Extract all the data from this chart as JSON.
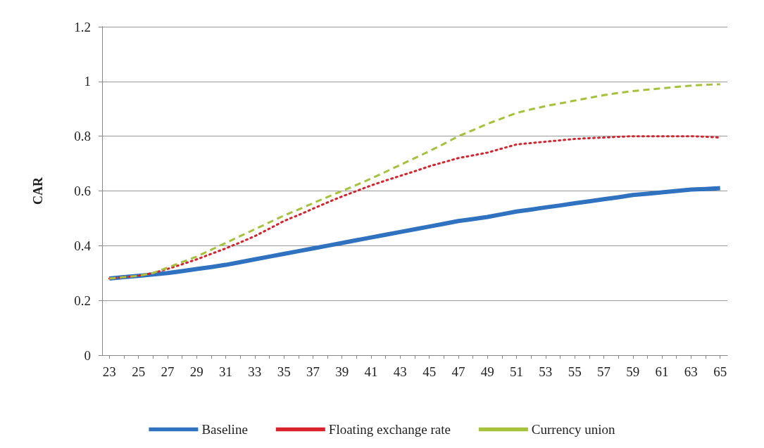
{
  "chart_data": {
    "type": "line",
    "ylabel": "CAR",
    "categories": [
      "23",
      null,
      "25",
      null,
      "27",
      null,
      "29",
      null,
      "31",
      null,
      "33",
      null,
      "35",
      null,
      "37",
      null,
      "39",
      null,
      "41",
      null,
      "43",
      null,
      "45",
      null,
      "47",
      null,
      "49",
      null,
      "51",
      null,
      "53",
      null,
      "55",
      null,
      "57",
      null,
      "59",
      null,
      "61",
      null,
      "63",
      null,
      "65"
    ],
    "series": [
      {
        "name": "Baseline",
        "color": "#2e72c0",
        "line_style": "solid",
        "values": [
          0.28,
          0.285,
          0.29,
          0.295,
          0.3,
          0.307,
          0.315,
          0.322,
          0.33,
          0.34,
          0.35,
          0.36,
          0.37,
          0.38,
          0.39,
          0.4,
          0.41,
          0.42,
          0.43,
          0.44,
          0.45,
          0.46,
          0.47,
          0.48,
          0.49,
          0.497,
          0.505,
          0.515,
          0.525,
          0.532,
          0.54,
          0.547,
          0.555,
          0.562,
          0.57,
          0.577,
          0.585,
          0.59,
          0.595,
          0.6,
          0.605,
          0.607,
          0.61
        ]
      },
      {
        "name": "Floating exchange rate",
        "color": "#d9222c",
        "line_style": "dotted",
        "values": [
          0.28,
          0.285,
          0.29,
          0.3,
          0.315,
          0.332,
          0.35,
          0.37,
          0.39,
          0.412,
          0.435,
          0.462,
          0.49,
          0.512,
          0.535,
          0.558,
          0.58,
          0.6,
          0.62,
          0.638,
          0.655,
          0.672,
          0.69,
          0.705,
          0.72,
          0.73,
          0.74,
          0.755,
          0.77,
          0.775,
          0.78,
          0.785,
          0.79,
          0.793,
          0.795,
          0.798,
          0.8,
          0.8,
          0.8,
          0.8,
          0.8,
          0.798,
          0.795
        ]
      },
      {
        "name": "Currency union",
        "color": "#a6c23a",
        "line_style": "dashed",
        "values": [
          0.28,
          0.285,
          0.29,
          0.3,
          0.32,
          0.34,
          0.36,
          0.385,
          0.41,
          0.435,
          0.46,
          0.485,
          0.51,
          0.532,
          0.555,
          0.578,
          0.6,
          0.622,
          0.645,
          0.67,
          0.695,
          0.72,
          0.745,
          0.772,
          0.8,
          0.822,
          0.845,
          0.865,
          0.885,
          0.898,
          0.91,
          0.92,
          0.93,
          0.94,
          0.95,
          0.958,
          0.965,
          0.97,
          0.975,
          0.98,
          0.985,
          0.988,
          0.99
        ]
      }
    ],
    "ylim": [
      0,
      1.2
    ],
    "yticks": [
      0,
      0.2,
      0.4,
      0.6,
      0.8,
      1,
      1.2
    ],
    "grid": "y",
    "legend": "bottom",
    "marker": "none"
  }
}
